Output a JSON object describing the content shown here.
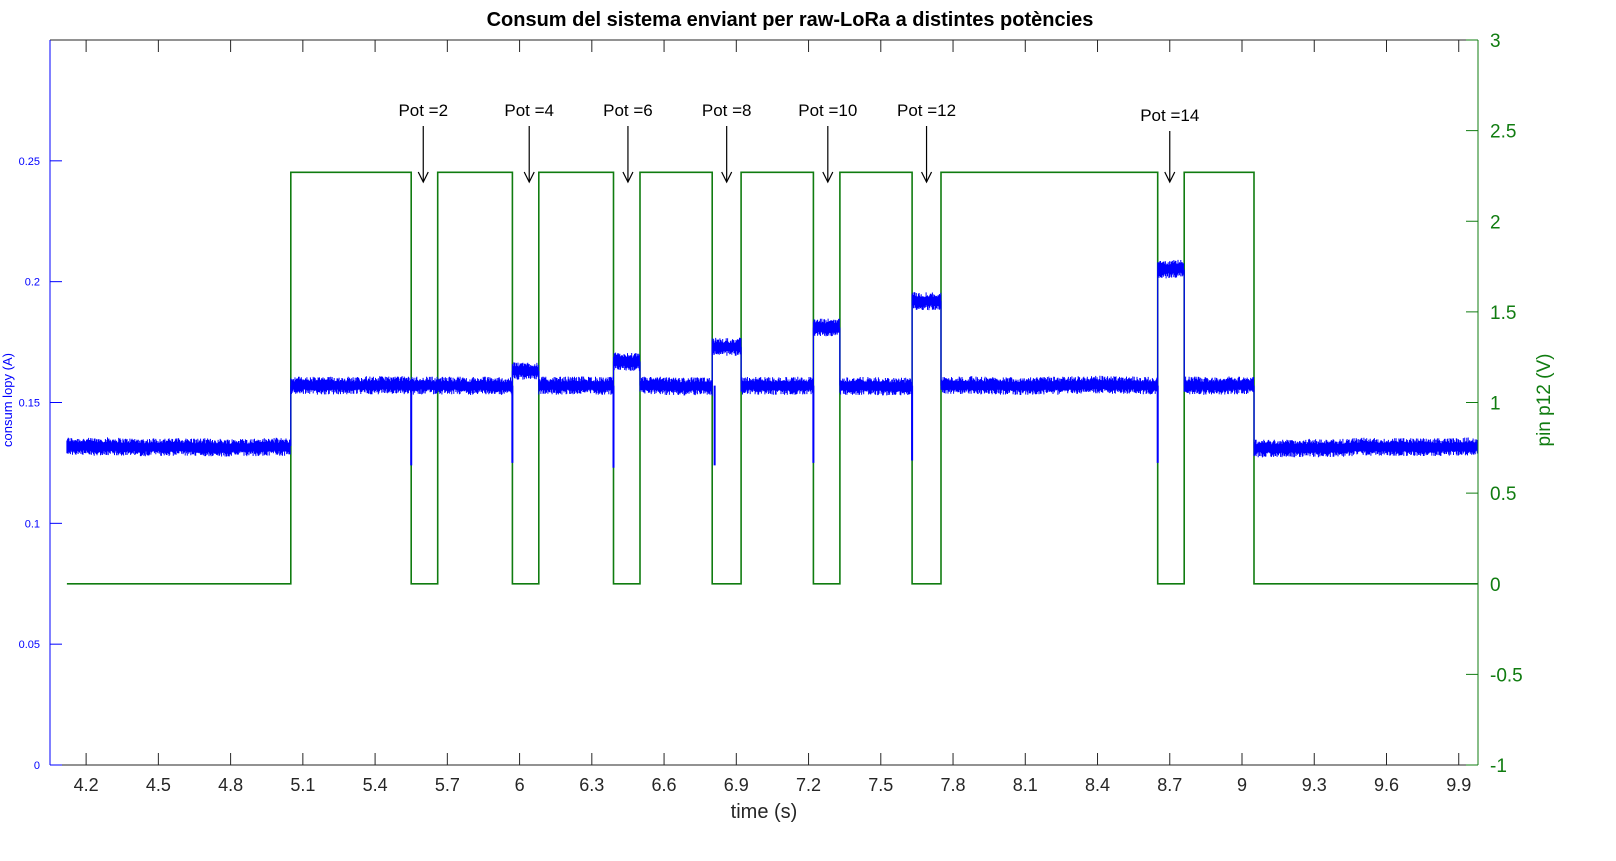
{
  "chart_data": {
    "type": "line",
    "title": "Consum del sistema enviant per raw-LoRa a distintes potències",
    "xlabel": "time (s)",
    "ylabel_left": "consum lopy (A)",
    "ylabel_right": "pin p12 (V)",
    "xlim": [
      4.05,
      9.98
    ],
    "ylim_left": [
      0,
      0.3
    ],
    "ylim_right": [
      -1,
      3
    ],
    "x_ticks": [
      "4.2",
      "4.5",
      "4.8",
      "5.1",
      "5.4",
      "5.7",
      "6",
      "6.3",
      "6.6",
      "6.9",
      "7.2",
      "7.5",
      "7.8",
      "8.1",
      "8.4",
      "8.7",
      "9",
      "9.3",
      "9.6",
      "9.9"
    ],
    "y_left_ticks": [
      "0",
      "0.05",
      "0.1",
      "0.15",
      "0.2",
      "0.25"
    ],
    "y_right_ticks": [
      "-1",
      "-0.5",
      "0",
      "0.5",
      "1",
      "1.5",
      "2",
      "2.5",
      "3"
    ],
    "colors": {
      "current": "#0000ff",
      "pin": "#107c10",
      "axis_left": "#0000ff",
      "axis_right": "#107c10"
    },
    "series": [
      {
        "axis": "left",
        "segments": [
          {
            "x0": 4.12,
            "x1": 5.05,
            "level": 0.132
          },
          {
            "x0": 5.05,
            "x1": 5.55,
            "level": 0.157
          },
          {
            "x0": 5.55,
            "x1": 5.66,
            "level": 0.157
          },
          {
            "x0": 5.66,
            "x1": 5.97,
            "level": 0.157
          },
          {
            "x0": 5.97,
            "x1": 6.08,
            "level": 0.163
          },
          {
            "x0": 6.08,
            "x1": 6.39,
            "level": 0.157
          },
          {
            "x0": 6.39,
            "x1": 6.5,
            "level": 0.167
          },
          {
            "x0": 6.5,
            "x1": 6.8,
            "level": 0.157
          },
          {
            "x0": 6.8,
            "x1": 6.92,
            "level": 0.173
          },
          {
            "x0": 6.92,
            "x1": 7.22,
            "level": 0.157
          },
          {
            "x0": 7.22,
            "x1": 7.33,
            "level": 0.181
          },
          {
            "x0": 7.33,
            "x1": 7.63,
            "level": 0.157
          },
          {
            "x0": 7.63,
            "x1": 7.75,
            "level": 0.192
          },
          {
            "x0": 7.75,
            "x1": 8.65,
            "level": 0.157
          },
          {
            "x0": 8.65,
            "x1": 8.76,
            "level": 0.205
          },
          {
            "x0": 8.76,
            "x1": 9.05,
            "level": 0.157
          },
          {
            "x0": 9.05,
            "x1": 9.98,
            "level": 0.131
          }
        ],
        "dips": [
          {
            "x": 5.55,
            "min": 0.124
          },
          {
            "x": 5.97,
            "min": 0.125
          },
          {
            "x": 6.39,
            "min": 0.123
          },
          {
            "x": 6.81,
            "min": 0.124
          },
          {
            "x": 7.22,
            "min": 0.125
          },
          {
            "x": 7.63,
            "min": 0.126
          },
          {
            "x": 8.65,
            "min": 0.125
          }
        ]
      },
      {
        "axis": "right",
        "steps": [
          {
            "x0": 4.12,
            "x1": 5.05,
            "v": 0
          },
          {
            "x0": 5.05,
            "x1": 5.55,
            "v": 2.27
          },
          {
            "x0": 5.55,
            "x1": 5.66,
            "v": 0
          },
          {
            "x0": 5.66,
            "x1": 5.97,
            "v": 2.27
          },
          {
            "x0": 5.97,
            "x1": 6.08,
            "v": 0
          },
          {
            "x0": 6.08,
            "x1": 6.39,
            "v": 2.27
          },
          {
            "x0": 6.39,
            "x1": 6.5,
            "v": 0
          },
          {
            "x0": 6.5,
            "x1": 6.8,
            "v": 2.27
          },
          {
            "x0": 6.8,
            "x1": 6.92,
            "v": 0
          },
          {
            "x0": 6.92,
            "x1": 7.22,
            "v": 2.27
          },
          {
            "x0": 7.22,
            "x1": 7.33,
            "v": 0
          },
          {
            "x0": 7.33,
            "x1": 7.63,
            "v": 2.27
          },
          {
            "x0": 7.63,
            "x1": 7.75,
            "v": 0
          },
          {
            "x0": 7.75,
            "x1": 8.65,
            "v": 2.27
          },
          {
            "x0": 8.65,
            "x1": 8.76,
            "v": 0
          },
          {
            "x0": 8.76,
            "x1": 9.05,
            "v": 2.27
          },
          {
            "x0": 9.05,
            "x1": 9.98,
            "v": 0
          }
        ]
      }
    ],
    "annotations": [
      {
        "text": "Pot =2",
        "x": 5.6
      },
      {
        "text": "Pot =4",
        "x": 6.04
      },
      {
        "text": "Pot =6",
        "x": 6.45
      },
      {
        "text": "Pot =8",
        "x": 6.86
      },
      {
        "text": "Pot =10",
        "x": 7.28
      },
      {
        "text": "Pot =12",
        "x": 7.69
      },
      {
        "text": "Pot =14",
        "x": 8.7
      }
    ]
  }
}
